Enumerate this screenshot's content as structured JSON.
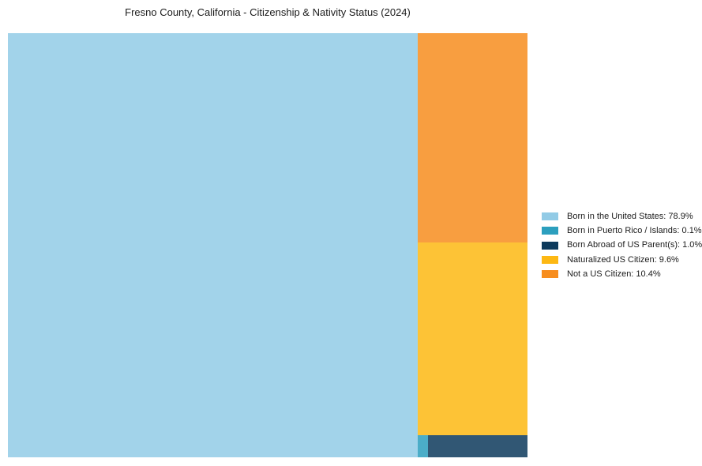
{
  "page": {
    "background_color": "#ffffff"
  },
  "chart_data": {
    "type": "treemap",
    "title": "Fresno County, California - Citizenship & Nativity Status (2024)",
    "legend_position": "right",
    "plot_opacity": 0.85,
    "segments": [
      {
        "key": "born_us",
        "label": "Born in the United States",
        "value_pct": 78.9,
        "color": "#92CBE6"
      },
      {
        "key": "born_pr",
        "label": "Born in Puerto Rico / Islands",
        "value_pct": 0.1,
        "color": "#2C9FBE"
      },
      {
        "key": "born_abroad",
        "label": "Born Abroad of US Parent(s)",
        "value_pct": 1.0,
        "color": "#0D3A5C"
      },
      {
        "key": "naturalized",
        "label": "Naturalized US Citizen",
        "value_pct": 9.6,
        "color": "#FDB813"
      },
      {
        "key": "not_citizen",
        "label": "Not a US Citizen",
        "value_pct": 10.4,
        "color": "#F78D1E"
      }
    ],
    "legend_labels": [
      "Born in the United States: 78.9%",
      "Born in Puerto Rico / Islands: 0.1%",
      "Born Abroad of US Parent(s): 1.0%",
      "Naturalized US Citizen: 9.6%",
      "Not a US Citizen: 10.4%"
    ]
  }
}
